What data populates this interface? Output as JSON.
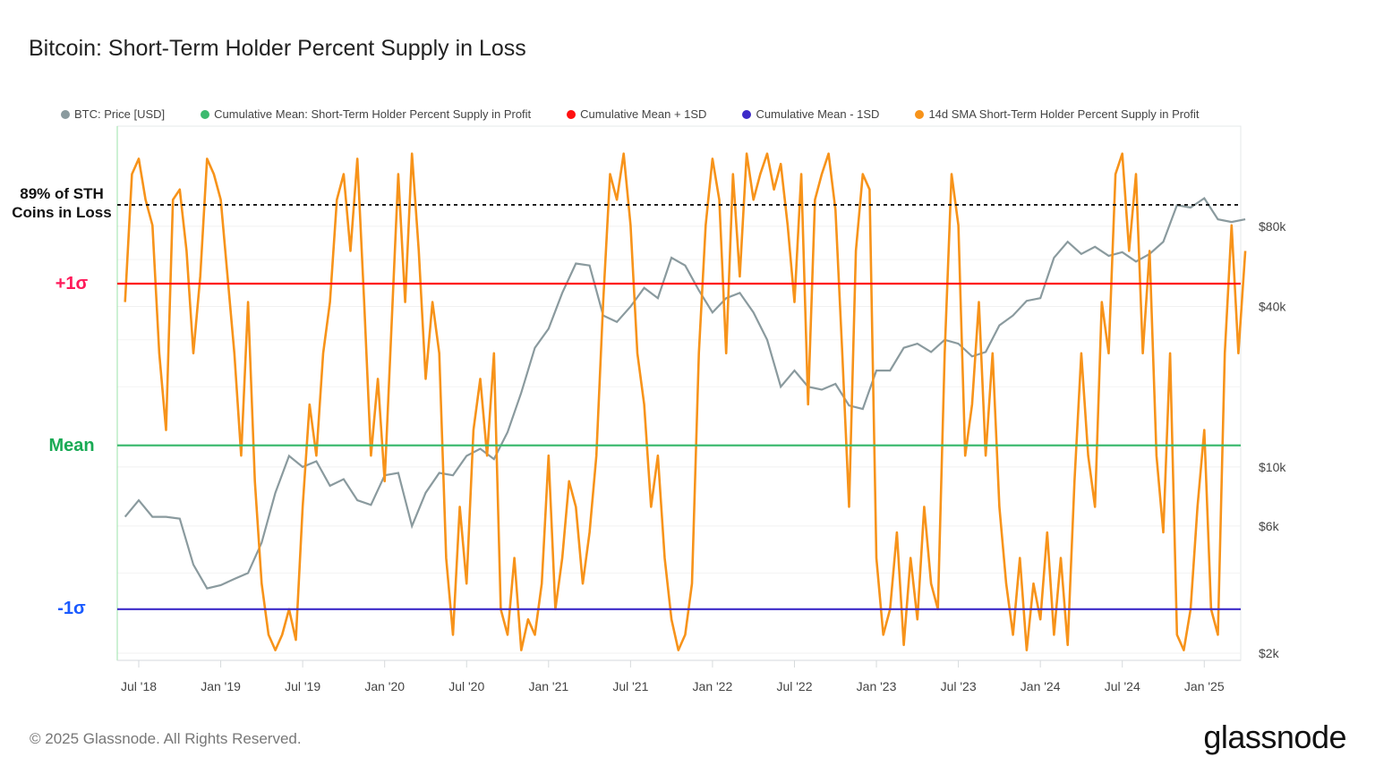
{
  "title": "Bitcoin: Short-Term Holder Percent Supply in Loss",
  "footer": "© 2025 Glassnode. All Rights Reserved.",
  "logo": "glassnode",
  "legend": [
    {
      "label": "BTC: Price [USD]",
      "color": "#8a9a9e"
    },
    {
      "label": "Cumulative Mean: Short-Term Holder Percent Supply in Profit",
      "color": "#3dba6f"
    },
    {
      "label": "Cumulative Mean + 1SD",
      "color": "#ff1010"
    },
    {
      "label": "Cumulative Mean - 1SD",
      "color": "#3d2bc8"
    },
    {
      "label": "14d SMA Short-Term Holder Percent Supply in Profit",
      "color": "#f7931a"
    }
  ],
  "annotations": {
    "threshold": "89% of STH Coins in Loss",
    "plus_sigma": "+1σ",
    "mean": "Mean",
    "minus_sigma": "-1σ"
  },
  "chart_data": {
    "type": "line",
    "title": "Bitcoin: Short-Term Holder Percent Supply in Loss",
    "x_ticks": [
      "Jul '18",
      "Jan '19",
      "Jul '19",
      "Jan '20",
      "Jul '20",
      "Jan '21",
      "Jul '21",
      "Jan '22",
      "Jul '22",
      "Jan '23",
      "Jul '23",
      "Jan '24",
      "Jul '24",
      "Jan '25"
    ],
    "y_right": {
      "scale": "log",
      "ticks": [
        "$2k",
        "$6k",
        "$10k",
        "$40k",
        "$80k"
      ],
      "tick_values": [
        2000,
        6000,
        10000,
        40000,
        80000
      ],
      "range": [
        2000,
        160000
      ]
    },
    "y_left": {
      "unit": "percent",
      "range": [
        0,
        100
      ],
      "tick_labels_shown": false
    },
    "grid": "horizontal",
    "legend_placement": "top",
    "reference_lines": [
      {
        "name": "89% threshold",
        "value": 89,
        "style": "dashed",
        "color": "#111111"
      },
      {
        "name": "Cumulative Mean + 1SD",
        "value": 73.6,
        "color": "#ff1010"
      },
      {
        "name": "Cumulative Mean",
        "value": 42,
        "color": "#3dba6f"
      },
      {
        "name": "Cumulative Mean - 1SD",
        "value": 10,
        "color": "#3d2bc8"
      }
    ],
    "series": [
      {
        "name": "BTC: Price [USD]",
        "axis": "right",
        "color": "#8a9a9e",
        "start": "2018-06",
        "frequency": "monthly",
        "values": [
          6500,
          7500,
          6500,
          6500,
          6400,
          4300,
          3500,
          3600,
          3800,
          4000,
          5200,
          8000,
          11000,
          10000,
          10500,
          8500,
          9000,
          7500,
          7200,
          9300,
          9500,
          6000,
          8000,
          9500,
          9300,
          11000,
          11700,
          10700,
          13500,
          19000,
          28000,
          33000,
          45000,
          58000,
          57000,
          37000,
          35000,
          40000,
          47000,
          43000,
          61000,
          57000,
          46000,
          38000,
          43000,
          45000,
          38000,
          30000,
          20000,
          23000,
          20000,
          19500,
          20500,
          17000,
          16500,
          23000,
          23000,
          28000,
          29000,
          27000,
          30000,
          29000,
          26000,
          27000,
          34000,
          37000,
          42000,
          43000,
          61000,
          70000,
          63000,
          67000,
          62000,
          64000,
          59000,
          63000,
          70000,
          96000,
          94000,
          102000,
          85000,
          83000,
          85000
        ]
      },
      {
        "name": "14d SMA Short-Term Holder Percent Supply in Profit",
        "axis": "left",
        "color": "#f7931a",
        "start": "2018-06",
        "frequency": "semi-monthly",
        "values": [
          70,
          95,
          98,
          90,
          85,
          60,
          45,
          90,
          92,
          80,
          60,
          75,
          98,
          95,
          90,
          75,
          60,
          40,
          70,
          35,
          15,
          5,
          2,
          5,
          10,
          4,
          30,
          50,
          40,
          60,
          70,
          90,
          95,
          80,
          98,
          70,
          40,
          55,
          35,
          65,
          95,
          70,
          99,
          80,
          55,
          70,
          60,
          20,
          5,
          30,
          15,
          45,
          55,
          40,
          60,
          10,
          5,
          20,
          2,
          8,
          5,
          15,
          40,
          10,
          20,
          35,
          30,
          15,
          25,
          40,
          70,
          95,
          90,
          99,
          85,
          60,
          50,
          30,
          40,
          20,
          8,
          2,
          5,
          15,
          60,
          85,
          98,
          90,
          60,
          95,
          75,
          99,
          90,
          95,
          99,
          92,
          97,
          85,
          70,
          95,
          50,
          90,
          95,
          99,
          88,
          60,
          30,
          80,
          95,
          92,
          20,
          5,
          10,
          25,
          3,
          20,
          8,
          30,
          15,
          10,
          60,
          95,
          85,
          40,
          50,
          70,
          40,
          60,
          30,
          15,
          5,
          20,
          2,
          15,
          8,
          25,
          5,
          20,
          3,
          35,
          60,
          40,
          30,
          70,
          60,
          95,
          99,
          80,
          95,
          60,
          80,
          40,
          25,
          60,
          5,
          2,
          10,
          30,
          45,
          10,
          5,
          60,
          85,
          60,
          80
        ]
      }
    ]
  }
}
